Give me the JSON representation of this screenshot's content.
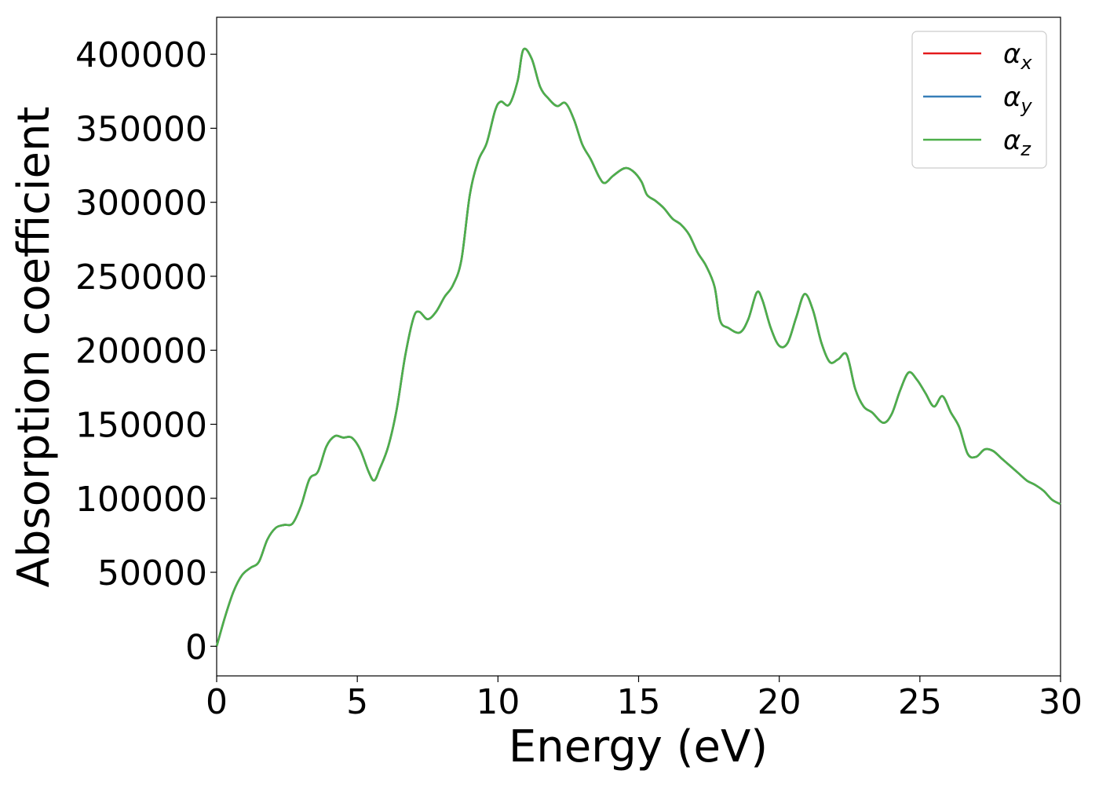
{
  "chart_data": {
    "type": "line",
    "title": "",
    "xlabel": "Energy (eV)",
    "ylabel": "Absorption coefficient",
    "xlim": [
      0,
      30
    ],
    "ylim": [
      -20000,
      425000
    ],
    "x_ticks": [
      "0",
      "5",
      "10",
      "15",
      "20",
      "25",
      "30"
    ],
    "y_ticks": [
      "0",
      "50000",
      "100000",
      "150000",
      "200000",
      "250000",
      "300000",
      "350000",
      "400000"
    ],
    "grid": false,
    "legend_position": "top-right",
    "series": [
      {
        "name": "α_x",
        "legend_base": "α",
        "legend_sub": "x",
        "color": "#e41a1c",
        "x": [
          0,
          0.3,
          0.6,
          0.9,
          1.2,
          1.5,
          1.8,
          2.1,
          2.4,
          2.7,
          3.0,
          3.3,
          3.6,
          3.9,
          4.2,
          4.5,
          4.8,
          5.1,
          5.4,
          5.6,
          5.8,
          6.1,
          6.4,
          6.7,
          7.0,
          7.2,
          7.5,
          7.8,
          8.1,
          8.4,
          8.7,
          9.0,
          9.3,
          9.6,
          9.9,
          10.1,
          10.4,
          10.7,
          10.9,
          11.2,
          11.5,
          11.8,
          12.1,
          12.4,
          12.7,
          13.0,
          13.3,
          13.6,
          13.8,
          14.1,
          14.5,
          14.8,
          15.1,
          15.3,
          15.6,
          15.9,
          16.2,
          16.5,
          16.8,
          17.1,
          17.4,
          17.7,
          17.9,
          18.2,
          18.6,
          18.9,
          19.2,
          19.4,
          19.7,
          20.0,
          20.3,
          20.6,
          20.9,
          21.2,
          21.5,
          21.8,
          22.1,
          22.4,
          22.7,
          23.0,
          23.3,
          23.7,
          24.0,
          24.3,
          24.6,
          24.9,
          25.2,
          25.5,
          25.8,
          26.1,
          26.4,
          26.7,
          27.0,
          27.3,
          27.6,
          27.9,
          28.2,
          28.5,
          28.8,
          29.1,
          29.4,
          29.7,
          30.0
        ],
        "y": [
          0,
          20000,
          37000,
          48000,
          53000,
          57000,
          72000,
          80000,
          82000,
          83000,
          95000,
          113000,
          118000,
          135000,
          142000,
          141000,
          141000,
          133000,
          118000,
          112000,
          120000,
          135000,
          160000,
          196000,
          222000,
          226000,
          221000,
          226000,
          236000,
          244000,
          261000,
          305000,
          328000,
          340000,
          362000,
          368000,
          366000,
          382000,
          403000,
          397000,
          378000,
          370000,
          365000,
          367000,
          356000,
          339000,
          329000,
          317000,
          313000,
          318000,
          323000,
          321000,
          314000,
          305000,
          301000,
          296000,
          289000,
          285000,
          278000,
          266000,
          257000,
          243000,
          220000,
          215000,
          212000,
          221000,
          239000,
          234000,
          215000,
          203000,
          205000,
          222000,
          238000,
          227000,
          205000,
          192000,
          194000,
          197000,
          174000,
          162000,
          158000,
          151000,
          157000,
          173000,
          185000,
          180000,
          171000,
          162000,
          169000,
          158000,
          148000,
          130000,
          128000,
          133000,
          132000,
          127000,
          122000,
          117000,
          112000,
          109000,
          105000,
          99000,
          96000
        ]
      },
      {
        "name": "α_y",
        "legend_base": "α",
        "legend_sub": "y",
        "color": "#377eb8",
        "same_as": 0
      },
      {
        "name": "α_z",
        "legend_base": "α",
        "legend_sub": "z",
        "color": "#4daf4a",
        "same_as": 0
      }
    ]
  }
}
